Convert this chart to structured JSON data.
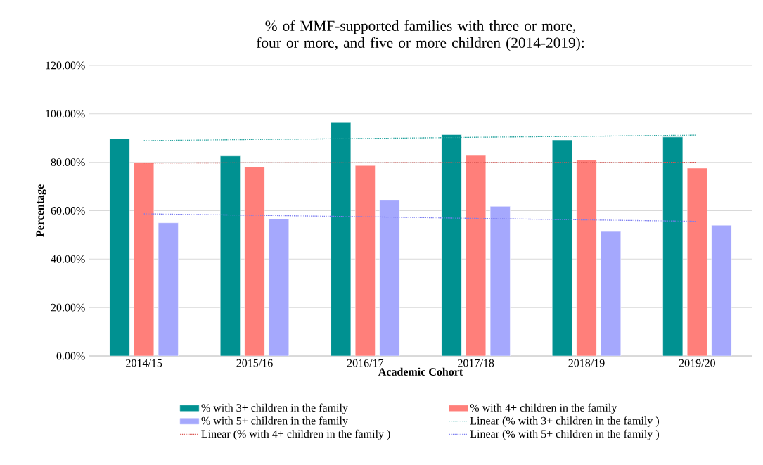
{
  "chart_data": {
    "type": "bar",
    "title": "% of MMF-supported families with three or more, four or more, and five or more children (2014-2019):",
    "xlabel": "Academic Cohort",
    "ylabel": "Percentage",
    "categories": [
      "2014/15",
      "2015/16",
      "2016/17",
      "2017/18",
      "2018/19",
      "2019/20"
    ],
    "series": [
      {
        "name": "% with 3+ children in the family",
        "color": "#009191",
        "values": [
          89.8,
          82.6,
          96.4,
          91.4,
          89.2,
          90.4
        ]
      },
      {
        "name": "% with 4+ children in the family",
        "color": "#ff7f7a",
        "values": [
          80.0,
          78.1,
          78.7,
          82.8,
          81.0,
          77.6
        ]
      },
      {
        "name": "% with 5+ children in the family",
        "color": "#a5a8fd",
        "values": [
          55.0,
          56.6,
          64.3,
          61.8,
          51.4,
          54.0
        ]
      },
      {
        "name": "Linear (% with 3+ children in the family )",
        "type": "line",
        "line_style": "dotted",
        "color": "#2aa5a0",
        "values": [
          88.9,
          89.4,
          89.8,
          90.3,
          90.7,
          91.2
        ]
      },
      {
        "name": "Linear (% with 4+ children in the family )",
        "type": "line",
        "line_style": "dotted",
        "color": "#d9534f",
        "values": [
          79.7,
          79.8,
          79.8,
          79.9,
          79.9,
          80.0
        ]
      },
      {
        "name": "Linear (% with 5+ children in the family )",
        "type": "line",
        "line_style": "dotted",
        "color": "#7b7df0",
        "values": [
          58.7,
          58.1,
          57.5,
          56.8,
          56.2,
          55.6
        ]
      }
    ],
    "ylim": [
      0,
      120
    ],
    "yticks": [
      {
        "value": 0,
        "label": "0.00%"
      },
      {
        "value": 20,
        "label": "20.00%"
      },
      {
        "value": 40,
        "label": "40.00%"
      },
      {
        "value": 60,
        "label": "60.00%"
      },
      {
        "value": 80,
        "label": "80.00%"
      },
      {
        "value": 100,
        "label": "100.00%"
      },
      {
        "value": 120,
        "label": "120.00%"
      }
    ],
    "grid": "y",
    "legend": "bottom"
  }
}
